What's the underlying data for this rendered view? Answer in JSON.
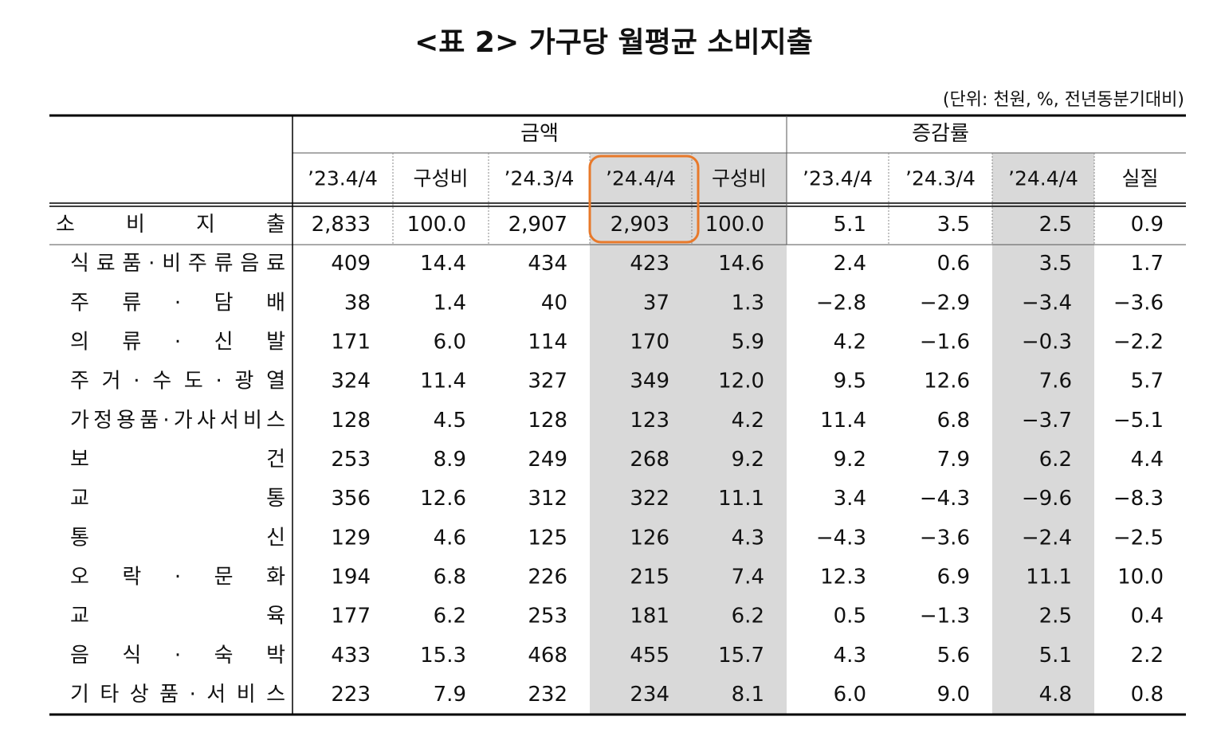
{
  "title": "<표 2> 가구당 월평균 소비지출",
  "unit_note": "(단위: 천원, %, 전년동분기대비)",
  "table": {
    "group_headers": [
      "금액",
      "증감률"
    ],
    "columns": [
      "’23.4/4",
      "구성비",
      "’24.3/4",
      "’24.4/4",
      "구성비",
      "’23.4/4",
      "’24.3/4",
      "’24.4/4",
      "실질"
    ],
    "rows": [
      {
        "label": "소 비 지 출",
        "cells": [
          "2,833",
          "100.0",
          "2,907",
          "2,903",
          "100.0",
          "5.1",
          "3.5",
          "2.5",
          "0.9"
        ]
      },
      {
        "label": "식료품·비주류음료",
        "cells": [
          "409",
          "14.4",
          "434",
          "423",
          "14.6",
          "2.4",
          "0.6",
          "3.5",
          "1.7"
        ]
      },
      {
        "label": "주 류 · 담 배",
        "cells": [
          "38",
          "1.4",
          "40",
          "37",
          "1.3",
          "−2.8",
          "−2.9",
          "−3.4",
          "−3.6"
        ]
      },
      {
        "label": "의 류 · 신 발",
        "cells": [
          "171",
          "6.0",
          "114",
          "170",
          "5.9",
          "4.2",
          "−1.6",
          "−0.3",
          "−2.2"
        ]
      },
      {
        "label": "주 거 · 수 도 · 광 열",
        "cells": [
          "324",
          "11.4",
          "327",
          "349",
          "12.0",
          "9.5",
          "12.6",
          "7.6",
          "5.7"
        ]
      },
      {
        "label": "가정용품·가사서비스",
        "cells": [
          "128",
          "4.5",
          "128",
          "123",
          "4.2",
          "11.4",
          "6.8",
          "−3.7",
          "−5.1"
        ]
      },
      {
        "label": "보 건",
        "cells": [
          "253",
          "8.9",
          "249",
          "268",
          "9.2",
          "9.2",
          "7.9",
          "6.2",
          "4.4"
        ]
      },
      {
        "label": "교 통",
        "cells": [
          "356",
          "12.6",
          "312",
          "322",
          "11.1",
          "3.4",
          "−4.3",
          "−9.6",
          "−8.3"
        ]
      },
      {
        "label": "통 신",
        "cells": [
          "129",
          "4.6",
          "125",
          "126",
          "4.3",
          "−4.3",
          "−3.6",
          "−2.4",
          "−2.5"
        ]
      },
      {
        "label": "오 락 · 문 화",
        "cells": [
          "194",
          "6.8",
          "226",
          "215",
          "7.4",
          "12.3",
          "6.9",
          "11.1",
          "10.0"
        ]
      },
      {
        "label": "교 육",
        "cells": [
          "177",
          "6.2",
          "253",
          "181",
          "6.2",
          "0.5",
          "−1.3",
          "2.5",
          "0.4"
        ]
      },
      {
        "label": "음 식 · 숙 박",
        "cells": [
          "433",
          "15.3",
          "468",
          "455",
          "15.7",
          "4.3",
          "5.6",
          "5.1",
          "2.2"
        ]
      },
      {
        "label": "기 타 상 품 · 서 비 스",
        "cells": [
          "223",
          "7.9",
          "232",
          "234",
          "8.1",
          "6.0",
          "9.0",
          "4.8",
          "0.8"
        ]
      }
    ]
  }
}
